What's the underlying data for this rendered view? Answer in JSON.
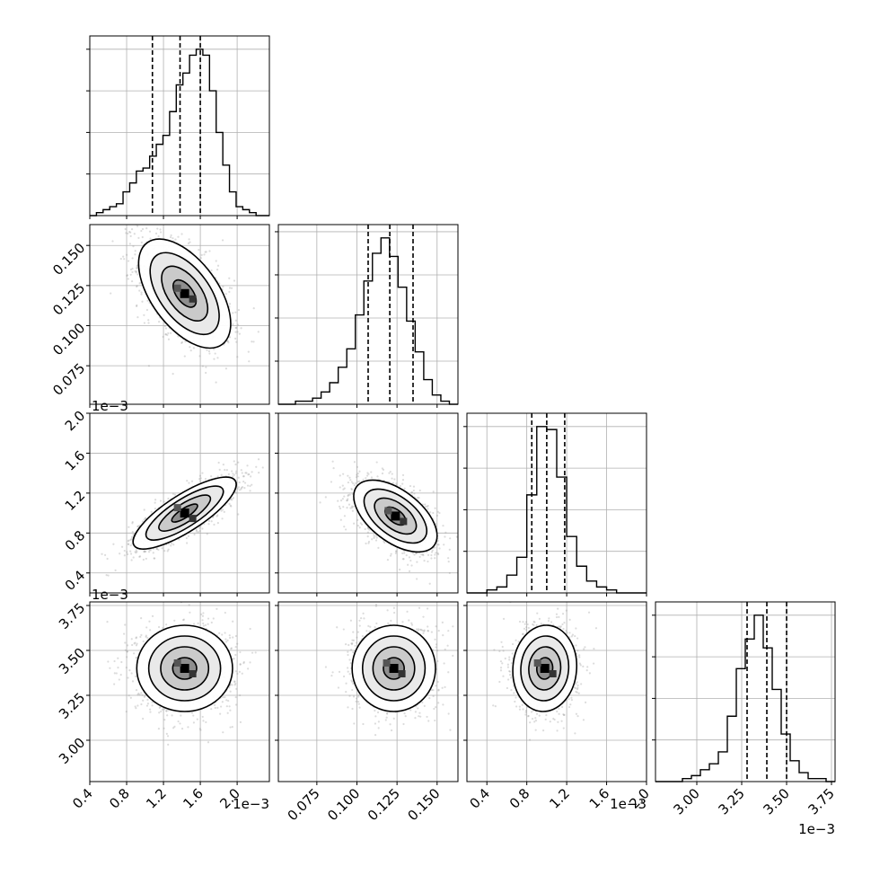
{
  "chart_data": {
    "type": "corner",
    "grid": true,
    "parameters": [
      {
        "ticks": [
          "0.4",
          "0.8",
          "1.2",
          "1.6",
          "2.0"
        ],
        "tick_values": [
          0.4,
          0.8,
          1.2,
          1.6,
          2.0
        ],
        "range": [
          0.4,
          2.35
        ],
        "offset": "1e−3",
        "hist": [
          0,
          1,
          2,
          3,
          4,
          8,
          11,
          15,
          16,
          20,
          24,
          27,
          35,
          44,
          48,
          54,
          56,
          54,
          42,
          28,
          17,
          8,
          3,
          2,
          1,
          0,
          0
        ],
        "quantiles": [
          1.08,
          1.38,
          1.6
        ]
      },
      {
        "ticks": [
          "0.075",
          "0.100",
          "0.125",
          "0.150"
        ],
        "tick_values": [
          0.075,
          0.1,
          0.125,
          0.15
        ],
        "range": [
          0.051,
          0.163
        ],
        "hist": [
          0,
          0,
          1,
          1,
          2,
          4,
          7,
          12,
          18,
          29,
          40,
          49,
          54,
          48,
          38,
          27,
          17,
          8,
          3,
          1,
          0
        ],
        "quantiles": [
          0.107,
          0.1205,
          0.135
        ]
      },
      {
        "ticks": [
          "0.4",
          "0.8",
          "1.2",
          "1.6",
          "2.0"
        ],
        "tick_values": [
          0.4,
          0.8,
          1.2,
          1.6,
          2.0
        ],
        "range": [
          0.2,
          2.0
        ],
        "offset": "1e−3",
        "hist": [
          0,
          0,
          1,
          2,
          6,
          12,
          33,
          56,
          55,
          39,
          19,
          9,
          4,
          2,
          1,
          0,
          0,
          0
        ],
        "quantiles": [
          0.85,
          1.0,
          1.18
        ]
      },
      {
        "ticks": [
          "3.00",
          "3.25",
          "3.50",
          "3.75"
        ],
        "tick_values": [
          3.0,
          3.25,
          3.5,
          3.75
        ],
        "range": [
          2.77,
          3.77
        ],
        "offset": "1e−3",
        "hist": [
          0,
          0,
          0,
          1,
          2,
          4,
          6,
          10,
          22,
          38,
          48,
          56,
          45,
          31,
          16,
          7,
          3,
          1,
          1,
          0
        ],
        "quantiles": [
          3.28,
          3.39,
          3.5
        ]
      }
    ],
    "pairs": [
      {
        "row": 1,
        "col": 0,
        "center": [
          1.43,
          0.12
        ],
        "sigma": [
          0.25,
          0.017
        ],
        "rho": -0.55
      },
      {
        "row": 2,
        "col": 0,
        "center": [
          1.43,
          1.0
        ],
        "sigma": [
          0.28,
          0.18
        ],
        "rho": 0.8
      },
      {
        "row": 2,
        "col": 1,
        "center": [
          0.124,
          0.97
        ],
        "sigma": [
          0.013,
          0.18
        ],
        "rho": -0.55
      },
      {
        "row": 3,
        "col": 0,
        "center": [
          1.43,
          3.4
        ],
        "sigma": [
          0.26,
          0.12
        ],
        "rho": 0.0
      },
      {
        "row": 3,
        "col": 1,
        "center": [
          0.123,
          3.4
        ],
        "sigma": [
          0.013,
          0.12
        ],
        "rho": 0.0
      },
      {
        "row": 3,
        "col": 2,
        "center": [
          0.98,
          3.4
        ],
        "sigma": [
          0.16,
          0.12
        ],
        "rho": 0.05
      }
    ]
  }
}
